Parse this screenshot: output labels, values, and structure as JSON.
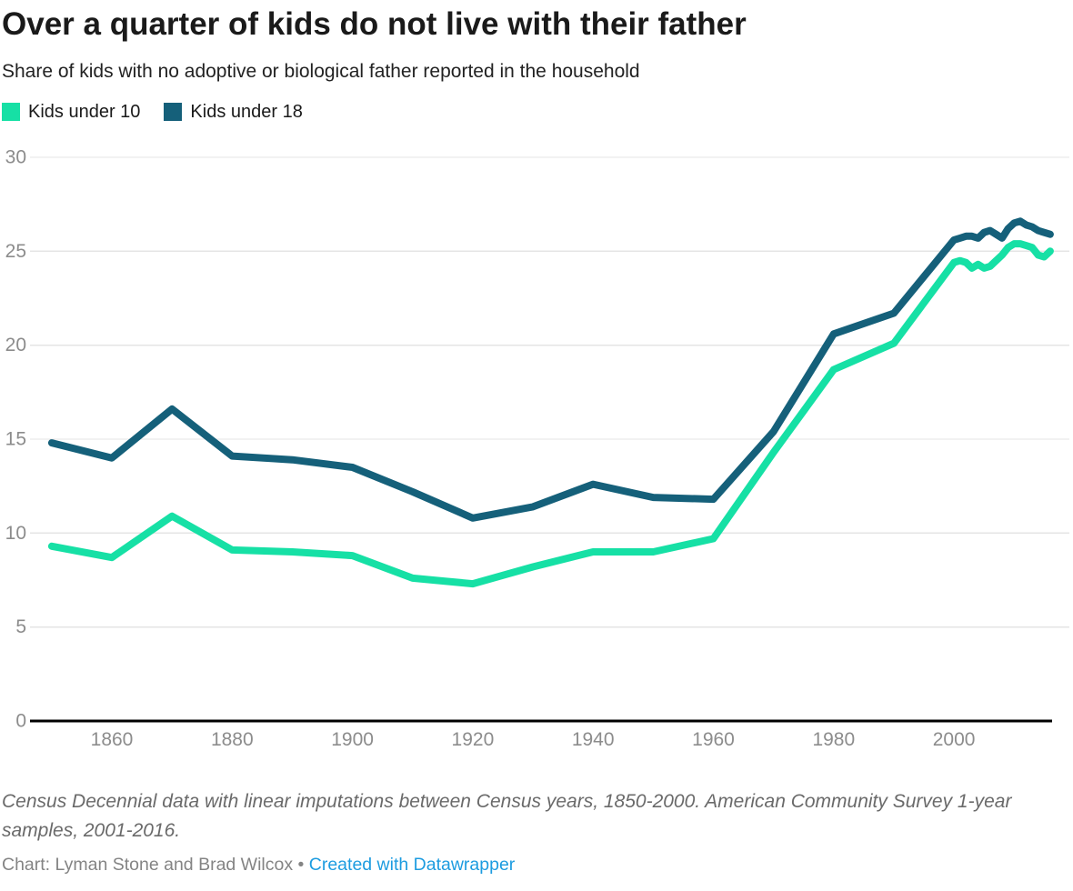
{
  "header": {
    "title": "Over a quarter of kids do not live with their father",
    "subtitle": "Share of kids with no adoptive or biological father reported in the household"
  },
  "legend": {
    "items": [
      {
        "label": "Kids under 10"
      },
      {
        "label": "Kids under 18"
      }
    ]
  },
  "footer": {
    "note": "Census Decennial data with linear imputations between Census years, 1850-2000. American Community Survey 1-year samples, 2001-2016.",
    "credit_prefix": "Chart: Lyman Stone and Brad Wilcox",
    "credit_separator": "•",
    "credit_link_text": "Created with Datawrapper",
    "credit_link_color": "#1d9ce0"
  },
  "chart_data": {
    "type": "line",
    "title": "Over a quarter of kids do not live with their father",
    "subtitle": "Share of kids with no adoptive or biological father reported in the household",
    "xlabel": "",
    "ylabel": "",
    "grid": true,
    "legend_position": "top",
    "ylim": [
      0,
      30
    ],
    "yticks": [
      0,
      5,
      10,
      15,
      20,
      25,
      30
    ],
    "xlim": [
      1850,
      2016
    ],
    "xticks": [
      1860,
      1880,
      1900,
      1920,
      1940,
      1960,
      1980,
      2000
    ],
    "x": [
      1850,
      1860,
      1870,
      1880,
      1890,
      1900,
      1910,
      1920,
      1930,
      1940,
      1950,
      1960,
      1970,
      1980,
      1990,
      2000,
      2001,
      2002,
      2003,
      2004,
      2005,
      2006,
      2007,
      2008,
      2009,
      2010,
      2011,
      2012,
      2013,
      2014,
      2015,
      2016
    ],
    "series": [
      {
        "name": "Kids under 10",
        "color": "#16e0a5",
        "values": [
          9.3,
          8.7,
          10.9,
          9.1,
          9.0,
          8.8,
          7.6,
          7.3,
          8.2,
          9.0,
          9.0,
          9.7,
          14.3,
          18.7,
          20.1,
          24.4,
          24.5,
          24.4,
          24.1,
          24.3,
          24.1,
          24.2,
          24.5,
          24.8,
          25.2,
          25.4,
          25.4,
          25.3,
          25.2,
          24.8,
          24.7,
          25.0
        ]
      },
      {
        "name": "Kids under 18",
        "color": "#15607a",
        "values": [
          14.8,
          14.0,
          16.6,
          14.1,
          13.9,
          13.5,
          12.2,
          10.8,
          11.4,
          12.6,
          11.9,
          11.8,
          15.4,
          20.6,
          21.7,
          25.6,
          25.7,
          25.8,
          25.8,
          25.7,
          26.0,
          26.1,
          25.9,
          25.7,
          26.2,
          26.5,
          26.6,
          26.4,
          26.3,
          26.1,
          26.0,
          25.9
        ]
      }
    ],
    "axis_color": "#000000",
    "gridline_color": "#e4e4e4",
    "tick_label_color": "#8c8c8c"
  }
}
